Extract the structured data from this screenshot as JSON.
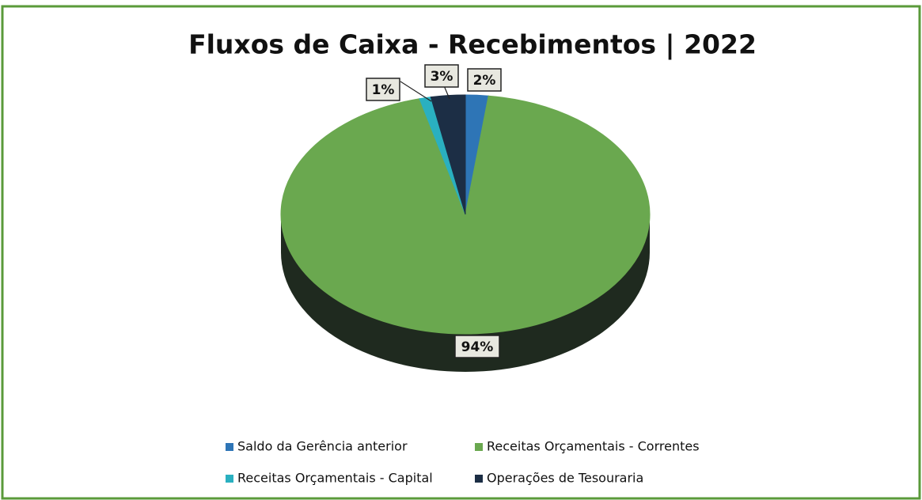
{
  "chart_data": {
    "type": "pie",
    "title": "Fluxos de Caixa - Recebimentos |  2022",
    "categories": [
      "Saldo da Gerência anterior",
      "Receitas Orçamentais - Correntes",
      "Receitas Orçamentais - Capital",
      "Operações de Tesouraria"
    ],
    "values": [
      2,
      94,
      1,
      3
    ],
    "value_labels": [
      "2%",
      "94%",
      "1%",
      "3%"
    ],
    "colors": [
      "#2e75b6",
      "#6aa84f",
      "#2ab0c0",
      "#1c2e45"
    ]
  }
}
